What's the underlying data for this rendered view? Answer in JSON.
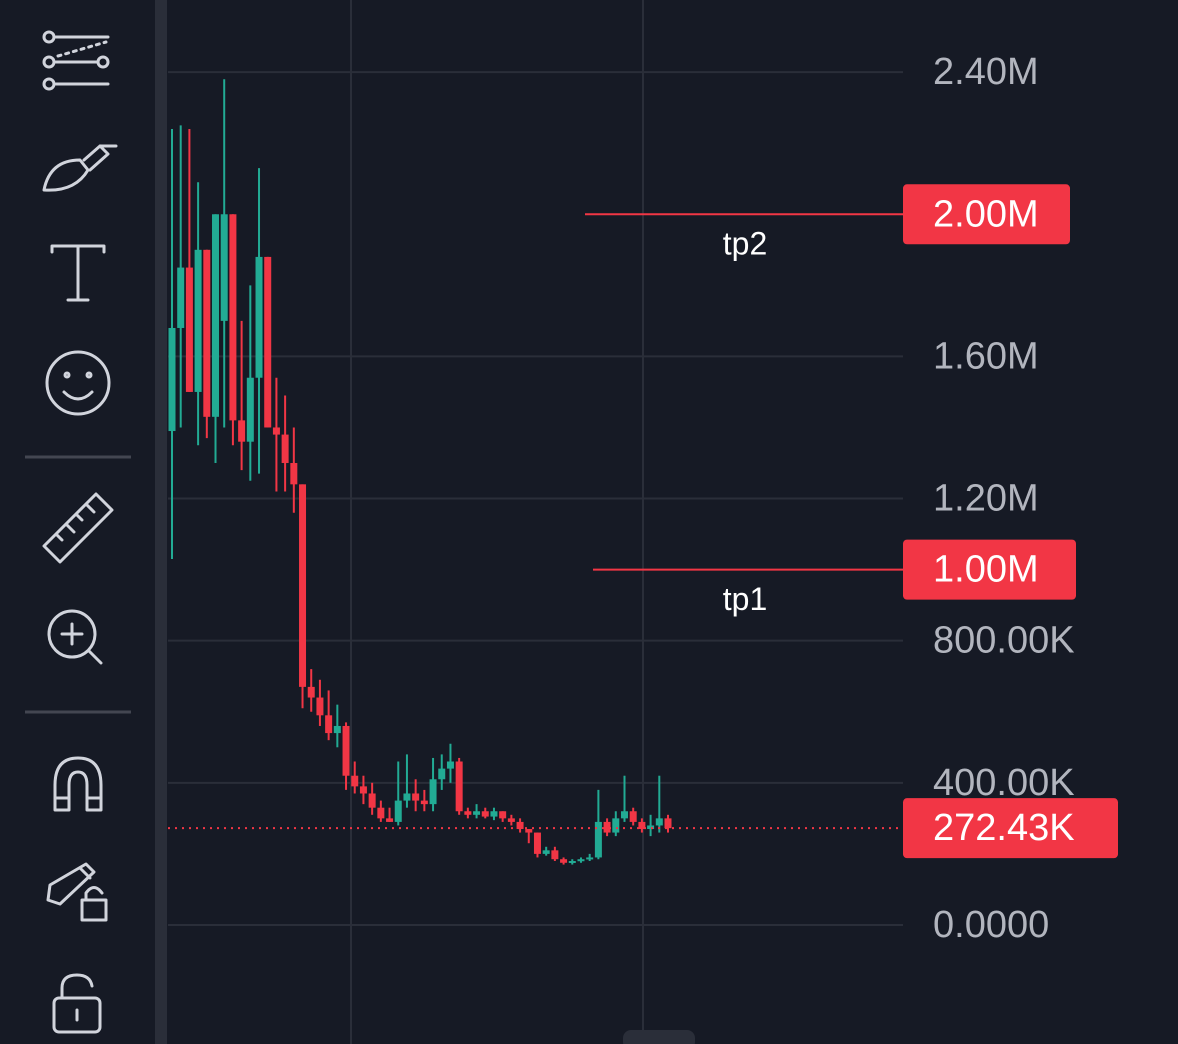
{
  "chart_data": {
    "type": "candlestick",
    "ylim": [
      -335000,
      2603000
    ],
    "yticks": [
      {
        "value": 0,
        "label": "0.0000"
      },
      {
        "value": 400000,
        "label": "400.00K"
      },
      {
        "value": 800000,
        "label": "800.00K"
      },
      {
        "value": 1200000,
        "label": "1.20M"
      },
      {
        "value": 1600000,
        "label": "1.60M"
      },
      {
        "value": 2400000,
        "label": "2.40M"
      }
    ],
    "grid": true,
    "up_color": "#22ab94",
    "down_color": "#f23645",
    "open": [
      1390000,
      1680000,
      1850000,
      1500000,
      1900000,
      1430000,
      1700000,
      2000000,
      1420000,
      1360000,
      1540000,
      1880000,
      1400000,
      1380000,
      1300000,
      1240000,
      670000,
      640000,
      590000,
      540000,
      560000,
      420000,
      390000,
      370000,
      330000,
      300000,
      290000,
      350000,
      370000,
      350000,
      340000,
      410000,
      440000,
      460000,
      320000,
      310000,
      320000,
      305000,
      320000,
      300000,
      290000,
      270000,
      260000,
      200000,
      210000,
      185000,
      175000,
      180000,
      185000,
      190000,
      290000,
      260000,
      300000,
      320000,
      290000,
      270000,
      280000,
      300000
    ],
    "high": [
      2240000,
      2250000,
      2240000,
      2090000,
      1900000,
      2000000,
      2380000,
      2000000,
      1700000,
      1800000,
      2130000,
      1880000,
      1540000,
      1490000,
      1400000,
      1240000,
      720000,
      690000,
      660000,
      620000,
      570000,
      460000,
      420000,
      400000,
      350000,
      330000,
      460000,
      480000,
      410000,
      380000,
      470000,
      480000,
      510000,
      470000,
      330000,
      340000,
      330000,
      330000,
      320000,
      310000,
      300000,
      270000,
      260000,
      220000,
      220000,
      190000,
      185000,
      190000,
      200000,
      380000,
      300000,
      320000,
      420000,
      330000,
      300000,
      310000,
      420000,
      310000
    ],
    "low": [
      1030000,
      1400000,
      1500000,
      1350000,
      1370000,
      1300000,
      1400000,
      1350000,
      1280000,
      1250000,
      1270000,
      1400000,
      1220000,
      1220000,
      1160000,
      610000,
      600000,
      560000,
      520000,
      500000,
      380000,
      370000,
      340000,
      310000,
      290000,
      290000,
      280000,
      330000,
      320000,
      320000,
      320000,
      380000,
      400000,
      310000,
      300000,
      300000,
      300000,
      295000,
      290000,
      280000,
      260000,
      230000,
      190000,
      195000,
      180000,
      170000,
      170000,
      175000,
      180000,
      185000,
      250000,
      250000,
      290000,
      280000,
      260000,
      250000,
      260000,
      260000
    ],
    "close": [
      1680000,
      1850000,
      1500000,
      1900000,
      1430000,
      2000000,
      2000000,
      1420000,
      1360000,
      1540000,
      1880000,
      1400000,
      1380000,
      1300000,
      1240000,
      670000,
      640000,
      590000,
      540000,
      560000,
      420000,
      390000,
      370000,
      330000,
      300000,
      290000,
      350000,
      370000,
      350000,
      340000,
      410000,
      440000,
      460000,
      320000,
      310000,
      320000,
      305000,
      320000,
      300000,
      290000,
      270000,
      260000,
      200000,
      210000,
      185000,
      175000,
      180000,
      185000,
      190000,
      290000,
      260000,
      300000,
      320000,
      290000,
      270000,
      280000,
      300000,
      272430
    ],
    "price_lines": [
      {
        "value": 2000000,
        "label": "2.00M",
        "text": "tp2",
        "color": "#f23645"
      },
      {
        "value": 1000000,
        "label": "1.00M",
        "text": "tp1",
        "color": "#f23645"
      }
    ],
    "last_price": {
      "value": 272430,
      "label": "272.43K",
      "color": "#f23645"
    }
  }
}
